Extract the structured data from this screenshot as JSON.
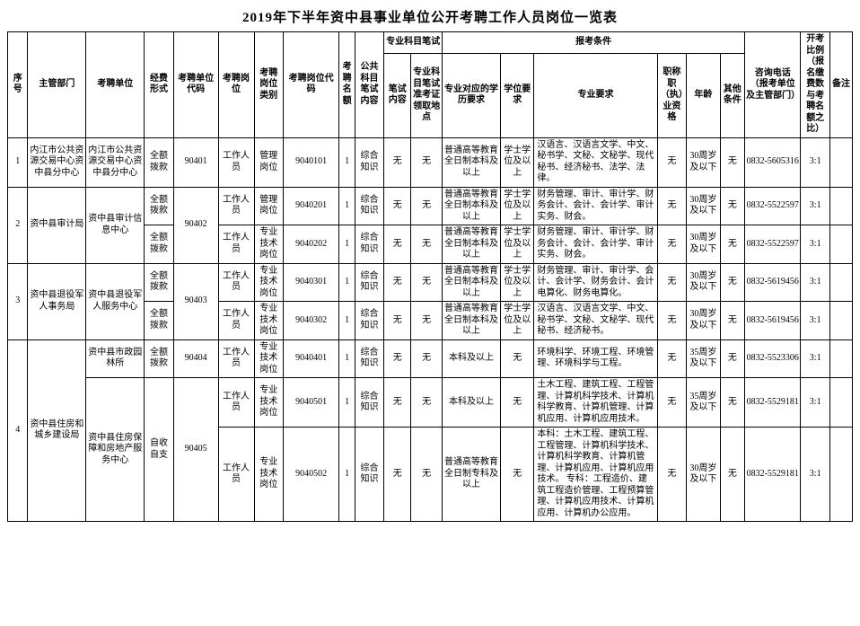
{
  "title": "2019年下半年资中县事业单位公开考聘工作人员岗位一览表",
  "headers": {
    "seq": "序号",
    "dept": "主管部门",
    "unit": "考聘单位",
    "fund": "经费形式",
    "ucode": "考聘单位代码",
    "pos": "考聘岗位",
    "pcat": "考聘岗位类别",
    "pcode": "考聘岗位代码",
    "cnt": "考聘名额",
    "pub": "公共科目笔试内容",
    "prof_group": "专业科目笔试",
    "exam1": "笔试内容",
    "exam2": "专业科目笔试准考证领取地点",
    "cond_group": "报考条件",
    "edreq": "专业对应的学历要求",
    "deg": "学位要求",
    "major": "专业要求",
    "title_": "职称职（执）业资格",
    "age": "年龄",
    "other": "其他条件",
    "phone": "咨询电话（报考单位及主管部门）",
    "ratio": "开考比例（报名缴费数与考聘名额之比）",
    "rem": "备注"
  },
  "rows": [
    {
      "seq": "1",
      "dept": "内江市公共资源交易中心资中县分中心",
      "unit": "内江市公共资源交易中心资中县分中心",
      "fund": "全额拨款",
      "ucode": "90401",
      "pos": "工作人员",
      "pcat": "管理岗位",
      "pcode": "9040101",
      "cnt": "1",
      "pub": "综合知识",
      "exam1": "无",
      "exam2": "无",
      "edreq": "普通高等教育全日制本科及以上",
      "deg": "学士学位及以上",
      "major": "汉语言、汉语言文学、中文、秘书学、文秘、文秘学、现代秘书、经济秘书、法学、法律。",
      "title": "无",
      "age": "30周岁及以下",
      "other": "无",
      "phone": "0832-5605316",
      "ratio": "3:1",
      "rem": ""
    },
    {
      "seq": "2",
      "dept": "资中县审计局",
      "unit": "资中县审计信息中心",
      "fund": "全额拨款",
      "ucode": "90402",
      "pos": "工作人员",
      "pcat": "管理岗位",
      "pcode": "9040201",
      "cnt": "1",
      "pub": "综合知识",
      "exam1": "无",
      "exam2": "无",
      "edreq": "普通高等教育全日制本科及以上",
      "deg": "学士学位及以上",
      "major": "财务管理、审计、审计学、财务会计、会计、会计学、审计实务、财会。",
      "title": "无",
      "age": "30周岁及以下",
      "other": "无",
      "phone": "0832-5522597",
      "ratio": "3:1",
      "rem": ""
    },
    {
      "seq": "",
      "dept": "",
      "unit": "",
      "fund": "全额拨款",
      "ucode": "",
      "pos": "工作人员",
      "pcat": "专业技术岗位",
      "pcode": "9040202",
      "cnt": "1",
      "pub": "综合知识",
      "exam1": "无",
      "exam2": "无",
      "edreq": "普通高等教育全日制本科及以上",
      "deg": "学士学位及以上",
      "major": "财务管理、审计、审计学、财务会计、会计、会计学、审计实务、财会。",
      "title": "无",
      "age": "30周岁及以下",
      "other": "无",
      "phone": "0832-5522597",
      "ratio": "3:1",
      "rem": ""
    },
    {
      "seq": "3",
      "dept": "资中县退役军人事务局",
      "unit": "资中县退役军人服务中心",
      "fund": "全额拨款",
      "ucode": "90403",
      "pos": "工作人员",
      "pcat": "专业技术岗位",
      "pcode": "9040301",
      "cnt": "1",
      "pub": "综合知识",
      "exam1": "无",
      "exam2": "无",
      "edreq": "普通高等教育全日制本科及以上",
      "deg": "学士学位及以上",
      "major": "财务管理、审计、审计学、会计、会计学、财务会计、会计电算化、财务电算化。",
      "title": "无",
      "age": "30周岁及以下",
      "other": "无",
      "phone": "0832-5619456",
      "ratio": "3:1",
      "rem": ""
    },
    {
      "seq": "",
      "dept": "",
      "unit": "",
      "fund": "全额拨款",
      "ucode": "",
      "pos": "工作人员",
      "pcat": "专业技术岗位",
      "pcode": "9040302",
      "cnt": "1",
      "pub": "综合知识",
      "exam1": "无",
      "exam2": "无",
      "edreq": "普通高等教育全日制本科及以上",
      "deg": "学士学位及以上",
      "major": "汉语言、汉语言文学、中文、秘书学、文秘、文秘学、现代秘书、经济秘书。",
      "title": "无",
      "age": "30周岁及以下",
      "other": "无",
      "phone": "0832-5619456",
      "ratio": "3:1",
      "rem": ""
    },
    {
      "seq": "4",
      "dept": "资中县住房和城乡建设局",
      "unit": "资中县市政园林所",
      "fund": "全额拨款",
      "ucode": "90404",
      "pos": "工作人员",
      "pcat": "专业技术岗位",
      "pcode": "9040401",
      "cnt": "1",
      "pub": "综合知识",
      "exam1": "无",
      "exam2": "无",
      "edreq": "本科及以上",
      "deg": "无",
      "major": "环境科学、环境工程、环境管理、环境科学与工程。",
      "title": "无",
      "age": "35周岁及以下",
      "other": "无",
      "phone": "0832-5523306",
      "ratio": "3:1",
      "rem": ""
    },
    {
      "seq": "",
      "dept": "",
      "unit": "资中县住房保障和房地产服务中心",
      "fund": "自收自支",
      "ucode": "90405",
      "pos": "工作人员",
      "pcat": "专业技术岗位",
      "pcode": "9040501",
      "cnt": "1",
      "pub": "综合知识",
      "exam1": "无",
      "exam2": "无",
      "edreq": "本科及以上",
      "deg": "无",
      "major": "土木工程、建筑工程、工程管理、计算机科学技术、计算机科学教育、计算机管理、计算机应用、计算机应用技术。",
      "title": "无",
      "age": "35周岁及以下",
      "other": "无",
      "phone": "0832-5529181",
      "ratio": "3:1",
      "rem": ""
    },
    {
      "seq": "",
      "dept": "",
      "unit": "",
      "fund": "",
      "ucode": "",
      "pos": "工作人员",
      "pcat": "专业技术岗位",
      "pcode": "9040502",
      "cnt": "1",
      "pub": "综合知识",
      "exam1": "无",
      "exam2": "无",
      "edreq": "普通高等教育全日制专科及以上",
      "deg": "无",
      "major": "本科：土木工程、建筑工程、工程管理、计算机科学技术、计算机科学教育、计算机管理、计算机应用、计算机应用技术。\n专科：工程造价、建筑工程造价管理、工程预算管理、计算机应用技术、计算机应用、计算机办公应用。",
      "title": "无",
      "age": "30周岁及以下",
      "other": "无",
      "phone": "0832-5529181",
      "ratio": "3:1",
      "rem": ""
    }
  ]
}
